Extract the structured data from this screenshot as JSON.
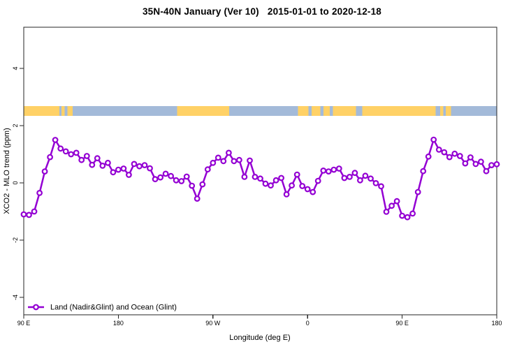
{
  "title": {
    "full": "35N-40N January (Ver 10)  2015-01-01 to 2020-12-18",
    "region_part": "35N-40N January (Ver 10)",
    "dates_part": "2015-01-01 to 2020-12-18"
  },
  "legend": {
    "label": "Land (Nadir&Glint) and Ocean (Glint)",
    "position": "bottom-left",
    "marker": "open-circle-on-line"
  },
  "colors": {
    "series": "#9400D3",
    "marker_fill": "#ffffff",
    "land": "#FFD166",
    "ocean": "#A3BAD9",
    "axis": "#262626",
    "text": "#000000",
    "background": "#ffffff"
  },
  "chart_data": {
    "type": "line",
    "title": "35N-40N January (Ver 10)  2015-01-01 to 2020-12-18",
    "xlabel": "Longitude (deg E)",
    "ylabel": "XCO2 - MLO trend (ppm)",
    "xlim": [
      90,
      540
    ],
    "ylim": [
      -4.6,
      5.45
    ],
    "grid": false,
    "x_ticks": [
      {
        "lon": 90,
        "label": "90 E"
      },
      {
        "lon": 180,
        "label": "180"
      },
      {
        "lon": 270,
        "label": "90 W"
      },
      {
        "lon": 360,
        "label": "0"
      },
      {
        "lon": 450,
        "label": "90 E"
      },
      {
        "lon": 540,
        "label": "180"
      }
    ],
    "y_ticks": [
      {
        "value": -4,
        "label": "-4"
      },
      {
        "value": -2,
        "label": "-2"
      },
      {
        "value": 0,
        "label": "0"
      },
      {
        "value": 2,
        "label": "2"
      },
      {
        "value": 4,
        "label": "4"
      }
    ],
    "series": [
      {
        "name": "Land (Nadir&Glint) and Ocean (Glint)",
        "x": [
          90,
          95,
          100,
          105,
          110,
          115,
          120,
          125,
          130,
          135,
          140,
          145,
          150,
          155,
          160,
          165,
          170,
          175,
          180,
          185,
          190,
          195,
          200,
          205,
          210,
          215,
          220,
          225,
          230,
          235,
          240,
          245,
          250,
          255,
          260,
          265,
          270,
          275,
          280,
          285,
          290,
          295,
          300,
          305,
          310,
          315,
          320,
          325,
          330,
          335,
          340,
          345,
          350,
          355,
          360,
          365,
          370,
          375,
          380,
          385,
          390,
          395,
          400,
          405,
          410,
          415,
          420,
          425,
          430,
          435,
          440,
          445,
          450,
          455,
          460,
          465,
          470,
          475,
          480,
          485,
          490,
          495,
          500,
          505,
          510,
          515,
          520,
          525,
          530,
          535,
          540
        ],
        "y": [
          -1.1,
          -1.12,
          -1.0,
          -0.35,
          0.4,
          0.9,
          1.5,
          1.2,
          1.1,
          1.0,
          1.05,
          0.8,
          0.94,
          0.63,
          0.86,
          0.6,
          0.7,
          0.37,
          0.46,
          0.5,
          0.28,
          0.66,
          0.58,
          0.62,
          0.51,
          0.13,
          0.19,
          0.32,
          0.24,
          0.09,
          0.06,
          0.22,
          -0.1,
          -0.55,
          -0.05,
          0.47,
          0.7,
          0.88,
          0.76,
          1.05,
          0.76,
          0.8,
          0.21,
          0.78,
          0.21,
          0.15,
          -0.03,
          -0.09,
          0.09,
          0.17,
          -0.4,
          -0.09,
          0.29,
          -0.11,
          -0.22,
          -0.32,
          0.07,
          0.43,
          0.4,
          0.46,
          0.5,
          0.17,
          0.21,
          0.35,
          0.09,
          0.25,
          0.15,
          -0.01,
          -0.12,
          -1.01,
          -0.8,
          -0.64,
          -1.15,
          -1.2,
          -1.07,
          -0.32,
          0.41,
          0.92,
          1.51,
          1.16,
          1.07,
          0.9,
          1.02,
          0.94,
          0.68,
          0.89,
          0.66,
          0.74,
          0.41,
          0.62,
          0.65
        ]
      }
    ],
    "map_strip": {
      "description": "land/ocean mask band across 35N-40N",
      "y_range": [
        2.34,
        2.68
      ],
      "land_segments": [
        [
          90,
          124
        ],
        [
          126,
          129
        ],
        [
          131.5,
          136.5
        ],
        [
          236,
          285.5
        ],
        [
          351,
          361
        ],
        [
          364,
          372
        ],
        [
          375,
          381
        ],
        [
          384,
          406
        ],
        [
          412,
          482
        ],
        [
          486,
          489
        ],
        [
          491.5,
          496.5
        ]
      ],
      "ocean_is_base": true
    }
  }
}
